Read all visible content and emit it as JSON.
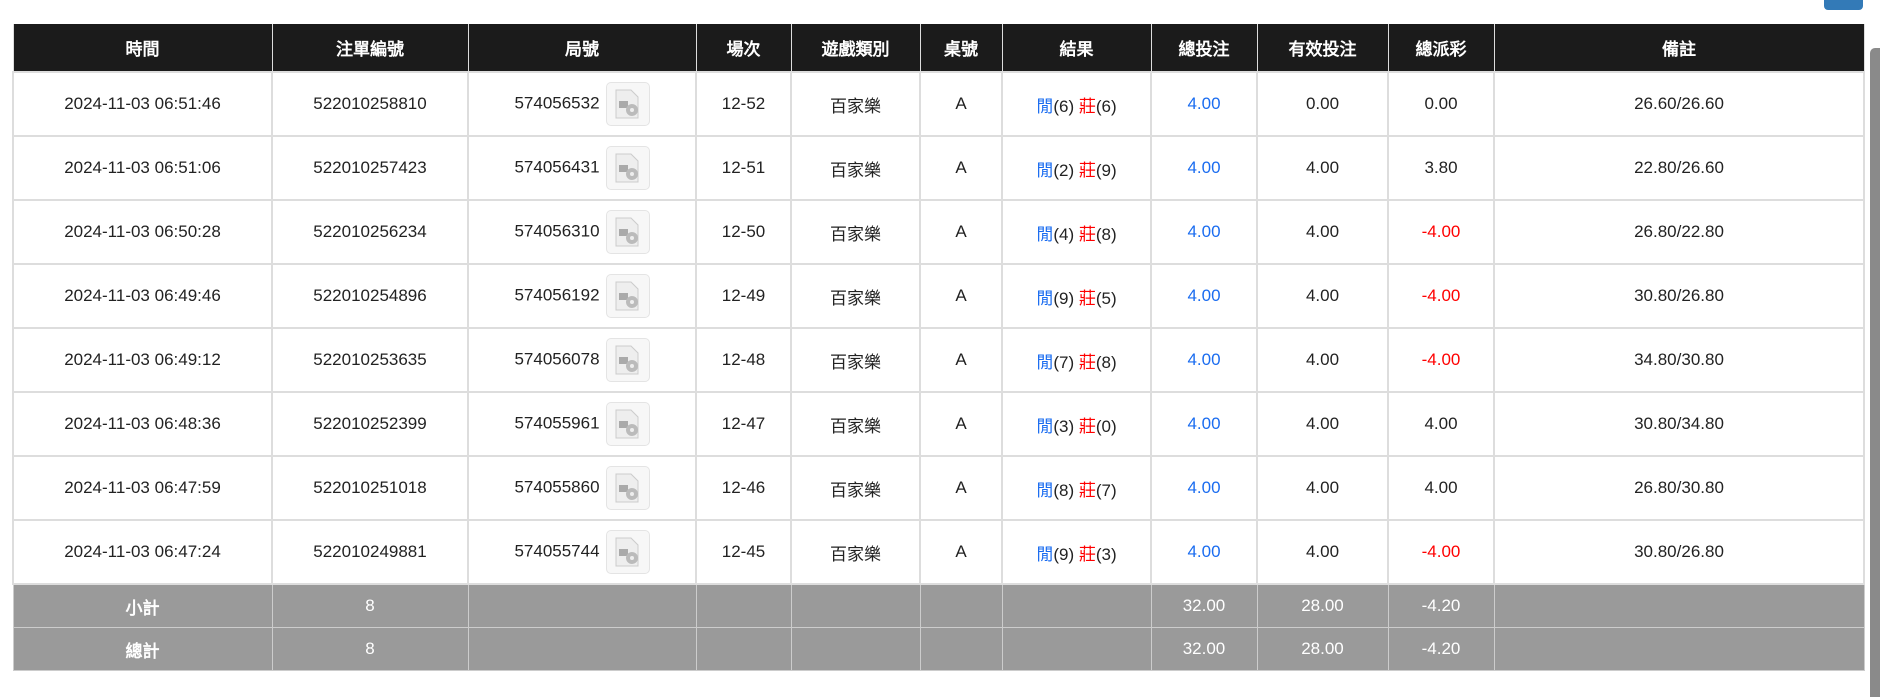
{
  "headers": [
    "時間",
    "注單編號",
    "局號",
    "場次",
    "遊戲類別",
    "桌號",
    "結果",
    "總投注",
    "有效投注",
    "總派彩",
    "備註"
  ],
  "rows": [
    {
      "time": "2024-11-03 06:51:46",
      "bet_id": "522010258810",
      "round": "574056532",
      "game_no": "12-52",
      "type": "百家樂",
      "table": "A",
      "player": "閒",
      "player_pts": "(6)",
      "banker": "莊",
      "banker_pts": "(6)",
      "total": "4.00",
      "valid": "0.00",
      "payout": "0.00",
      "payout_neg": false,
      "note": "26.60/26.60"
    },
    {
      "time": "2024-11-03 06:51:06",
      "bet_id": "522010257423",
      "round": "574056431",
      "game_no": "12-51",
      "type": "百家樂",
      "table": "A",
      "player": "閒",
      "player_pts": "(2)",
      "banker": "莊",
      "banker_pts": "(9)",
      "total": "4.00",
      "valid": "4.00",
      "payout": "3.80",
      "payout_neg": false,
      "note": "22.80/26.60"
    },
    {
      "time": "2024-11-03 06:50:28",
      "bet_id": "522010256234",
      "round": "574056310",
      "game_no": "12-50",
      "type": "百家樂",
      "table": "A",
      "player": "閒",
      "player_pts": "(4)",
      "banker": "莊",
      "banker_pts": "(8)",
      "total": "4.00",
      "valid": "4.00",
      "payout": "-4.00",
      "payout_neg": true,
      "note": "26.80/22.80"
    },
    {
      "time": "2024-11-03 06:49:46",
      "bet_id": "522010254896",
      "round": "574056192",
      "game_no": "12-49",
      "type": "百家樂",
      "table": "A",
      "player": "閒",
      "player_pts": "(9)",
      "banker": "莊",
      "banker_pts": "(5)",
      "total": "4.00",
      "valid": "4.00",
      "payout": "-4.00",
      "payout_neg": true,
      "note": "30.80/26.80"
    },
    {
      "time": "2024-11-03 06:49:12",
      "bet_id": "522010253635",
      "round": "574056078",
      "game_no": "12-48",
      "type": "百家樂",
      "table": "A",
      "player": "閒",
      "player_pts": "(7)",
      "banker": "莊",
      "banker_pts": "(8)",
      "total": "4.00",
      "valid": "4.00",
      "payout": "-4.00",
      "payout_neg": true,
      "note": "34.80/30.80"
    },
    {
      "time": "2024-11-03 06:48:36",
      "bet_id": "522010252399",
      "round": "574055961",
      "game_no": "12-47",
      "type": "百家樂",
      "table": "A",
      "player": "閒",
      "player_pts": "(3)",
      "banker": "莊",
      "banker_pts": "(0)",
      "total": "4.00",
      "valid": "4.00",
      "payout": "4.00",
      "payout_neg": false,
      "note": "30.80/34.80"
    },
    {
      "time": "2024-11-03 06:47:59",
      "bet_id": "522010251018",
      "round": "574055860",
      "game_no": "12-46",
      "type": "百家樂",
      "table": "A",
      "player": "閒",
      "player_pts": "(8)",
      "banker": "莊",
      "banker_pts": "(7)",
      "total": "4.00",
      "valid": "4.00",
      "payout": "4.00",
      "payout_neg": false,
      "note": "26.80/30.80"
    },
    {
      "time": "2024-11-03 06:47:24",
      "bet_id": "522010249881",
      "round": "574055744",
      "game_no": "12-45",
      "type": "百家樂",
      "table": "A",
      "player": "閒",
      "player_pts": "(9)",
      "banker": "莊",
      "banker_pts": "(3)",
      "total": "4.00",
      "valid": "4.00",
      "payout": "-4.00",
      "payout_neg": true,
      "note": "30.80/26.80"
    }
  ],
  "footer": [
    {
      "label": "小計",
      "count": "8",
      "total": "32.00",
      "valid": "28.00",
      "payout": "-4.20"
    },
    {
      "label": "總計",
      "count": "8",
      "total": "32.00",
      "valid": "28.00",
      "payout": "-4.20"
    }
  ],
  "colors": {
    "header_bg": "#1b1b1b",
    "footer_bg": "#9a9a9a",
    "blue": "#1a6cf0",
    "red": "#ff0000",
    "button": "#337ab7"
  },
  "icons": {
    "replay": "video-replay-icon"
  }
}
